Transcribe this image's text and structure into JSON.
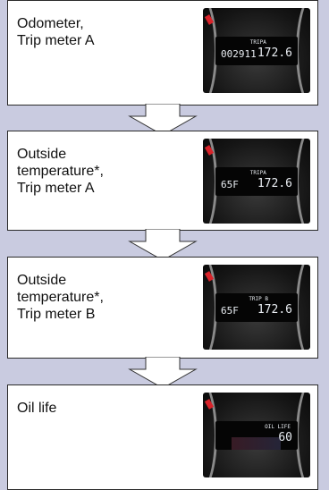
{
  "steps": [
    {
      "label": "Odometer,\nTrip meter A",
      "display": {
        "left": "002911",
        "tag": "TRIPA",
        "right": "172.6"
      }
    },
    {
      "label": "Outside\ntemperature*,\nTrip meter A",
      "display": {
        "left": "65F",
        "tag": "TRIPA",
        "right": "172.6"
      }
    },
    {
      "label": "Outside\ntemperature*,\nTrip meter B",
      "display": {
        "left": "65F",
        "tag": "TRIP B",
        "right": "172.6"
      }
    },
    {
      "label": "Oil life",
      "display": {
        "left": "",
        "tag": "OIL LIFE",
        "right": "60"
      }
    }
  ]
}
